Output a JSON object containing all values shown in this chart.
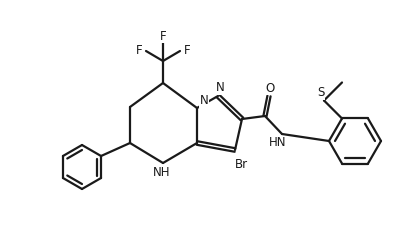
{
  "bg_color": "#ffffff",
  "line_color": "#1a1a1a",
  "line_width": 1.6,
  "font_size": 8.5,
  "figsize": [
    4.19,
    2.31
  ],
  "dpi": 100,
  "xlim": [
    0.0,
    4.19
  ],
  "ylim": [
    0.1,
    2.21
  ]
}
